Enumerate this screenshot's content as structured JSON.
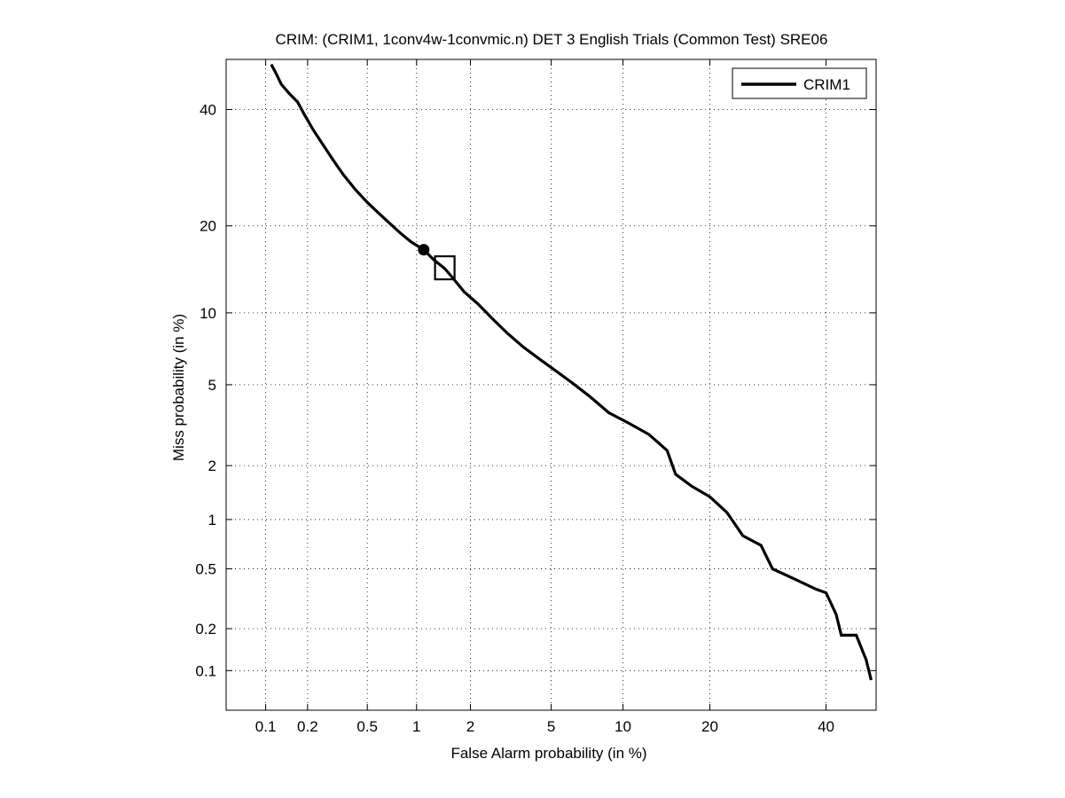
{
  "chart_data": {
    "type": "line",
    "title": "CRIM: (CRIM1, 1conv4w-1convmic.n) DET 3 English Trials (Common Test) SRE06",
    "xlabel": "False Alarm probability (in %)",
    "ylabel": "Miss probability (in %)",
    "x_scale": "probit",
    "y_scale": "probit",
    "xlim": [
      0.05,
      50
    ],
    "ylim": [
      0.05,
      50
    ],
    "x_ticks": [
      0.1,
      0.2,
      0.5,
      1,
      2,
      5,
      10,
      20,
      40
    ],
    "x_tick_labels": [
      "0.1",
      "0.2",
      "0.5",
      "1",
      "2",
      "5",
      "10",
      "20",
      "40"
    ],
    "y_ticks": [
      0.1,
      0.2,
      0.5,
      1,
      2,
      5,
      10,
      20,
      40
    ],
    "y_tick_labels": [
      "0.1",
      "0.2",
      "0.5",
      "1",
      "2",
      "5",
      "10",
      "20",
      "40"
    ],
    "grid": true,
    "legend_position": "top-right",
    "line_color": "#000000",
    "series": [
      {
        "name": "CRIM1",
        "x": [
          0.11,
          0.12,
          0.13,
          0.15,
          0.17,
          0.19,
          0.22,
          0.26,
          0.3,
          0.35,
          0.42,
          0.5,
          0.58,
          0.68,
          0.8,
          0.93,
          1.1,
          1.25,
          1.45,
          1.6,
          1.85,
          2.2,
          2.6,
          3.1,
          3.7,
          4.4,
          5.2,
          6.2,
          7.4,
          8.8,
          10.5,
          12.5,
          14.5,
          15.5,
          17.5,
          20,
          22.5,
          25,
          28,
          30,
          34,
          38,
          40,
          42,
          43,
          46,
          48,
          49
        ],
        "y": [
          49,
          47,
          45,
          43,
          41.5,
          39,
          36,
          33,
          30.5,
          28,
          25.5,
          23.5,
          22,
          20.5,
          19,
          17.8,
          16.8,
          15.6,
          14.5,
          13.5,
          12,
          10.8,
          9.5,
          8.3,
          7.3,
          6.5,
          5.8,
          5.1,
          4.4,
          3.7,
          3.3,
          2.9,
          2.4,
          1.8,
          1.55,
          1.35,
          1.1,
          0.8,
          0.7,
          0.5,
          0.43,
          0.37,
          0.35,
          0.25,
          0.18,
          0.18,
          0.12,
          0.085
        ]
      }
    ],
    "markers": [
      {
        "name": "actual-decision-point",
        "shape": "circle",
        "x": 1.1,
        "y": 16.8
      },
      {
        "name": "min-dcf-point",
        "shape": "square",
        "x": 1.45,
        "y": 14.6
      }
    ]
  }
}
